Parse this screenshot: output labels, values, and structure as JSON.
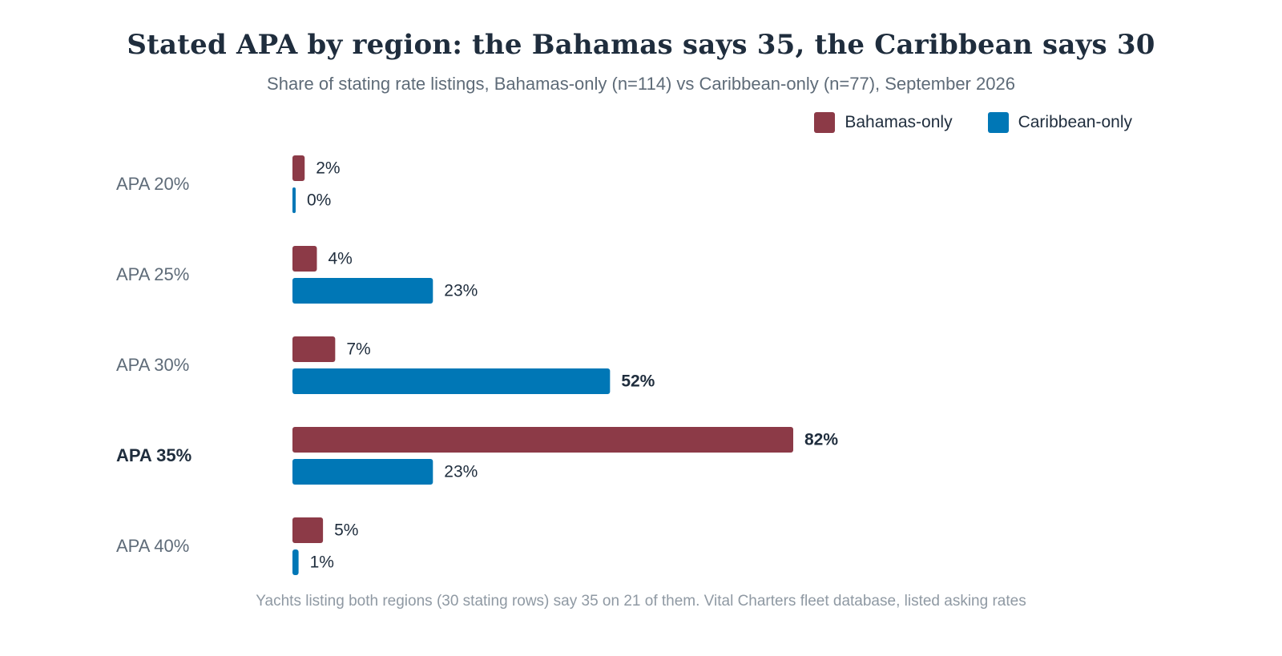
{
  "title": "Stated APA by region: the Bahamas says 35, the Caribbean says 30",
  "subtitle": "Share of stating rate listings, Bahamas-only (n=114) vs Caribbean-only (n=77), September 2026",
  "footer": "Yachts listing both regions (30 stating rows) say 35 on 21 of them. Vital Charters fleet database, listed asking rates",
  "colors": {
    "bahamas": "#8c3a47",
    "caribbean": "#0077b6"
  },
  "chart_data": {
    "type": "bar",
    "orientation": "horizontal",
    "categories": [
      "APA 20%",
      "APA 25%",
      "APA 30%",
      "APA 35%",
      "APA 40%"
    ],
    "highlight_category": "APA 35%",
    "series": [
      {
        "name": "Bahamas-only",
        "values": [
          2,
          4,
          7,
          82,
          5
        ],
        "labels": [
          "2%",
          "4%",
          "7%",
          "82%",
          "5%"
        ],
        "highlight_index": 3
      },
      {
        "name": "Caribbean-only",
        "values": [
          0,
          23,
          52,
          23,
          1
        ],
        "labels": [
          "0%",
          "23%",
          "52%",
          "23%",
          "1%"
        ],
        "highlight_index": 2
      }
    ],
    "xlim": [
      0,
      100
    ],
    "grid": false,
    "legend": "top-right"
  }
}
